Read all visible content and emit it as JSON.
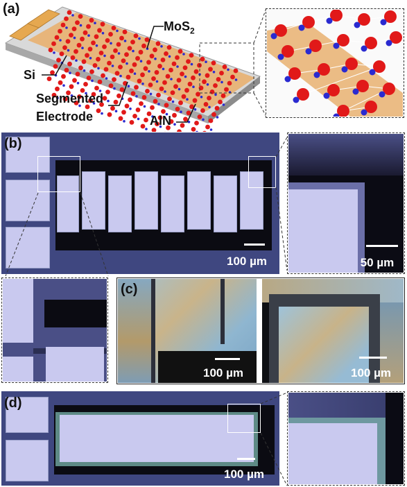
{
  "panels": {
    "a": "(a)",
    "b": "(b)",
    "c": "(c)",
    "d": "(d)"
  },
  "schematic": {
    "mos2_main": "MoS",
    "mos2_sub": "2",
    "si": "Si",
    "segmented": "Segmented",
    "electrode": "Electrode",
    "aln": "AlN"
  },
  "scalebars": {
    "b_main": "100 µm",
    "b_zoom": "50 µm",
    "c_left": "100 µm",
    "c_right": "100 µm",
    "d_main": "100 µm"
  },
  "colors": {
    "sulfur": "#e11919",
    "molybdenum": "#2a2ad0",
    "electrode_gold": "#e8b070",
    "substrate": "#3f4780",
    "pad": "#c9c9ef"
  }
}
